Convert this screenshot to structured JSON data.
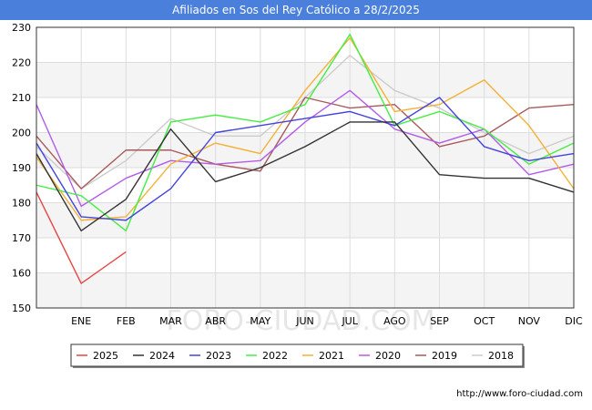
{
  "title": "Afiliados en Sos del Rey Católico a 28/2/2025",
  "watermark": "FORO-CIUDAD.COM",
  "source_url": "http://www.foro-ciudad.com",
  "chart_data": {
    "type": "line",
    "title": "Afiliados en Sos del Rey Católico a 28/2/2025",
    "xlabel": "",
    "ylabel": "",
    "categories": [
      "",
      "ENE",
      "FEB",
      "MAR",
      "ABR",
      "MAY",
      "JUN",
      "JUL",
      "AGO",
      "SEP",
      "OCT",
      "NOV",
      "DIC"
    ],
    "ylim": [
      150,
      230
    ],
    "yticks": [
      150,
      160,
      170,
      180,
      190,
      200,
      210,
      220,
      230
    ],
    "grid": true,
    "legend_position": "bottom",
    "series": [
      {
        "name": "2025",
        "color": "#e84545",
        "values": [
          183,
          157,
          166,
          null,
          null,
          null,
          null,
          null,
          null,
          null,
          null,
          null,
          null
        ]
      },
      {
        "name": "2024",
        "color": "#333333",
        "values": [
          194,
          172,
          181,
          201,
          186,
          190,
          196,
          203,
          203,
          188,
          187,
          187,
          183
        ]
      },
      {
        "name": "2023",
        "color": "#4444dd",
        "values": [
          197,
          176,
          175,
          184,
          200,
          202,
          204,
          206,
          202,
          210,
          196,
          192,
          194
        ]
      },
      {
        "name": "2022",
        "color": "#44ee44",
        "values": [
          185,
          182,
          172,
          203,
          205,
          203,
          208,
          228,
          202,
          206,
          201,
          191,
          197
        ]
      },
      {
        "name": "2021",
        "color": "#f5b035",
        "values": [
          193,
          175,
          176,
          191,
          197,
          194,
          212,
          227,
          206,
          208,
          215,
          202,
          184
        ]
      },
      {
        "name": "2020",
        "color": "#b35ce8",
        "values": [
          208,
          179,
          187,
          192,
          191,
          192,
          203,
          212,
          201,
          197,
          201,
          188,
          191
        ]
      },
      {
        "name": "2019",
        "color": "#a85a5a",
        "values": [
          199,
          184,
          195,
          195,
          191,
          189,
          210,
          207,
          208,
          196,
          199,
          207,
          208
        ]
      },
      {
        "name": "2018",
        "color": "#cccccc",
        "values": [
          196,
          184,
          192,
          204,
          199,
          199,
          210,
          222,
          212,
          207,
          200,
          194,
          199
        ]
      }
    ]
  }
}
